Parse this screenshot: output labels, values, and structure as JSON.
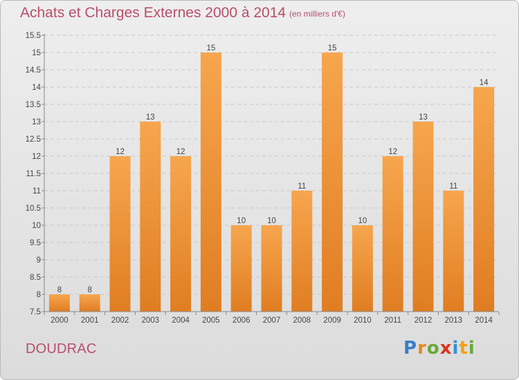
{
  "header": {
    "title": "Achats et Charges Externes 2000 à 2014",
    "subtitle": "(en milliers d'€)"
  },
  "footer": {
    "place": "DOUDRAC",
    "logo": [
      "P",
      "r",
      "o",
      "x",
      "i",
      "t",
      "i"
    ]
  },
  "colors": {
    "bar_top": "#f7a64e",
    "bar_bottom": "#e07d22",
    "title": "#b84e6d"
  },
  "chart_data": {
    "type": "bar",
    "title": "Achats et Charges Externes 2000 à 2014",
    "subtitle": "(en milliers d'€)",
    "categories": [
      "2000",
      "2001",
      "2002",
      "2003",
      "2004",
      "2005",
      "2006",
      "2007",
      "2008",
      "2009",
      "2010",
      "2011",
      "2012",
      "2013",
      "2014"
    ],
    "values": [
      8,
      8,
      12,
      13,
      12,
      15,
      10,
      10,
      11,
      15,
      10,
      12,
      13,
      11,
      14
    ],
    "data_labels": [
      "8",
      "8",
      "12",
      "13",
      "12",
      "15",
      "10",
      "10",
      "11",
      "15",
      "10",
      "12",
      "13",
      "11",
      "14"
    ],
    "ylim": [
      7.5,
      15.5
    ],
    "yticks": [
      7.5,
      8,
      8.5,
      9,
      9.5,
      10,
      10.5,
      11,
      11.5,
      12,
      12.5,
      13,
      13.5,
      14,
      14.5,
      15,
      15.5
    ],
    "ytick_labels": [
      "7.5",
      "8",
      "8.5",
      "9",
      "9.5",
      "10",
      "10.5",
      "11",
      "11.5",
      "12",
      "12.5",
      "13",
      "13.5",
      "14",
      "14.5",
      "15",
      "15.5"
    ],
    "grid": true,
    "xlabel": "",
    "ylabel": ""
  }
}
